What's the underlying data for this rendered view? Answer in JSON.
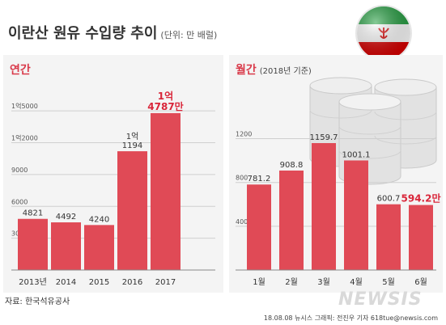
{
  "header": {
    "title": "이란산 원유 수입량 추이",
    "unit": "(단위: 만 배럴)"
  },
  "annual": {
    "title": "연간",
    "subtitle": ""
  },
  "monthly": {
    "title": "월간",
    "subtitle": "(2018년 기준)"
  },
  "footer": {
    "source": "자료: 한국석유공사",
    "credit": "18.08.08 뉴시스 그래픽: 전진우 기자 618tue@newsis.com",
    "watermark": "NEWSIS"
  },
  "colors": {
    "bar": "#e04a56",
    "highlight_text": "#d9263a",
    "panel_bg": "#f4f4f4",
    "flag_green": "#239f40",
    "flag_red": "#da0000"
  },
  "icons": [
    "iran-flag-icon",
    "oil-barrels-icon"
  ],
  "chart_data": [
    {
      "type": "bar",
      "title": "연간",
      "categories": [
        "2013년",
        "2014",
        "2015",
        "2016",
        "2017"
      ],
      "values": [
        4821,
        4492,
        4240,
        11194,
        14787
      ],
      "labels": [
        "4821",
        "4492",
        "4240",
        "1억\n1194",
        "1억\n4787만"
      ],
      "highlight_index": 4,
      "yticks": [
        3000,
        6000,
        9000,
        12000,
        15000
      ],
      "ytick_labels": [
        "3000",
        "6000",
        "9000",
        "1억2000",
        "1억5000"
      ],
      "ylim": [
        0,
        16000
      ],
      "grid": true
    },
    {
      "type": "bar",
      "title": "월간",
      "subtitle": "(2018년 기준)",
      "categories": [
        "1월",
        "2월",
        "3월",
        "4월",
        "5월",
        "6월"
      ],
      "values": [
        781.2,
        908.8,
        1159.7,
        1001.1,
        600.7,
        594.2
      ],
      "labels": [
        "781.2",
        "908.8",
        "1159.7",
        "1001.1",
        "600.7",
        "594.2만"
      ],
      "highlight_index": 5,
      "yticks": [
        400,
        800,
        1200
      ],
      "ytick_labels": [
        "400",
        "800",
        "1200"
      ],
      "ylim": [
        0,
        1300
      ],
      "grid": true
    }
  ]
}
